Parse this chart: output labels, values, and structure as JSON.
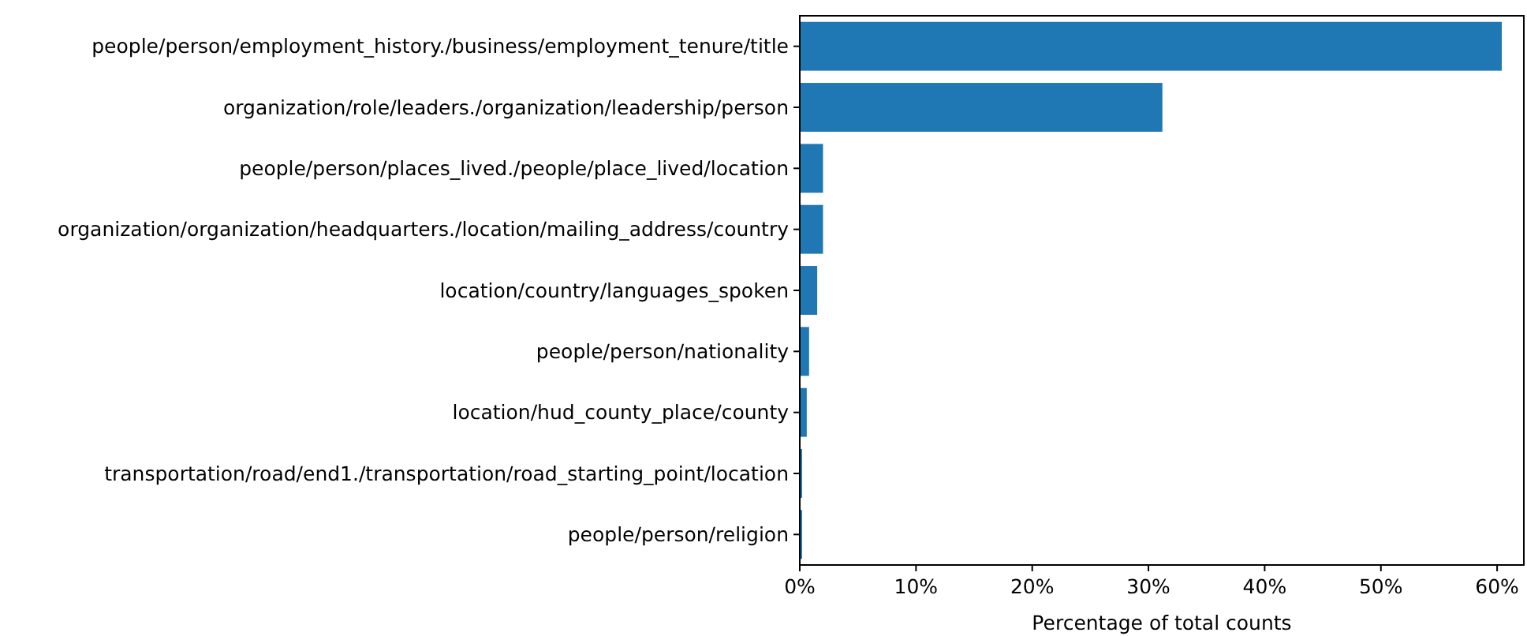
{
  "chart_data": {
    "type": "bar",
    "orientation": "horizontal",
    "xlabel": "Percentage of total counts",
    "categories": [
      "people/person/employment_history./business/employment_tenure/title",
      "organization/role/leaders./organization/leadership/person",
      "people/person/places_lived./people/place_lived/location",
      "organization/organization/headquarters./location/mailing_address/country",
      "location/country/languages_spoken",
      "people/person/nationality",
      "location/hud_county_place/county",
      "transportation/road/end1./transportation/road_starting_point/location",
      "people/person/religion"
    ],
    "values": [
      60.4,
      31.2,
      2.0,
      2.0,
      1.5,
      0.8,
      0.6,
      0.2,
      0.2
    ],
    "color": "#1f77b4",
    "xlim": [
      0,
      62.3
    ],
    "xticks": [
      {
        "value": 0,
        "label": "0%"
      },
      {
        "value": 10,
        "label": "10%"
      },
      {
        "value": 20,
        "label": "20%"
      },
      {
        "value": 30,
        "label": "30%"
      },
      {
        "value": 40,
        "label": "40%"
      },
      {
        "value": 50,
        "label": "50%"
      },
      {
        "value": 60,
        "label": "60%"
      }
    ],
    "grid": false
  }
}
